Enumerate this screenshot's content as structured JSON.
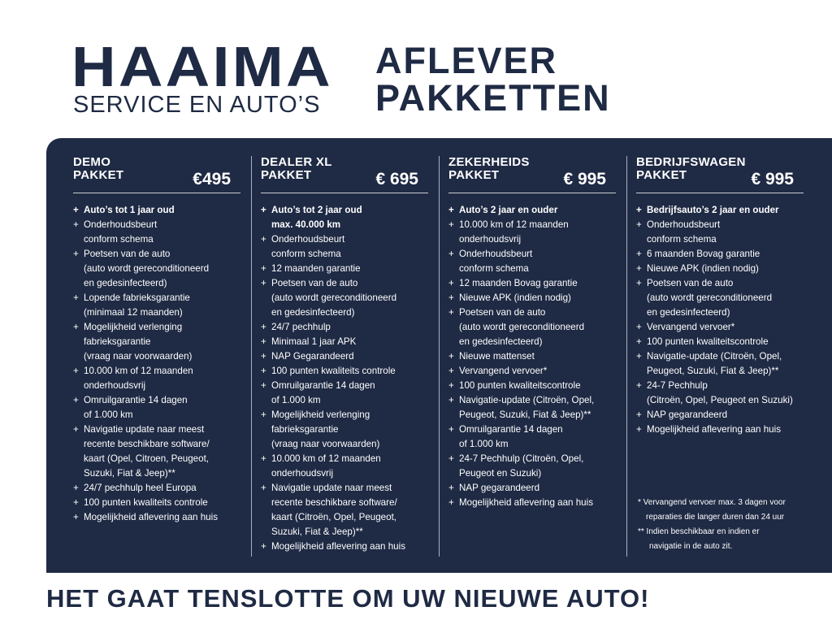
{
  "header": {
    "brand": "HAAIMA",
    "brand_sub": "SERVICE EN AUTO’S",
    "title_lines": [
      "AFLEVER",
      "PAKKETTEN"
    ]
  },
  "packages": [
    {
      "name_lines": [
        "DEMO",
        "PAKKET"
      ],
      "price": "€495",
      "items": [
        [
          "Auto’s tot 1 jaar oud"
        ],
        [
          "Onderhoudsbeurt",
          "conform schema"
        ],
        [
          "Poetsen van de auto",
          "(auto wordt gereconditioneerd",
          "en gedesinfecteerd)"
        ],
        [
          "Lopende fabrieksgarantie",
          "(minimaal 12 maanden)"
        ],
        [
          "Mogelijkheid verlenging",
          "fabrieksgarantie",
          "(vraag naar voorwaarden)"
        ],
        [
          "10.000 km of 12 maanden",
          "onderhoudsvrij"
        ],
        [
          "Omruilgarantie 14 dagen",
          "of 1.000 km"
        ],
        [
          "Navigatie update naar meest",
          "recente beschikbare software/",
          "kaart (Opel, Citroen,  Peugeot,",
          "Suzuki, Fiat & Jeep)**"
        ],
        [
          "24/7 pechhulp heel Europa"
        ],
        [
          "100 punten kwaliteits controle"
        ],
        [
          "Mogelijkheid aflevering aan huis"
        ]
      ]
    },
    {
      "name_lines": [
        "DEALER XL",
        "PAKKET"
      ],
      "price": "€ 695",
      "items": [
        [
          "Auto’s tot 2 jaar oud",
          "max. 40.000 km"
        ],
        [
          "Onderhoudsbeurt",
          "conform schema"
        ],
        [
          "12 maanden garantie"
        ],
        [
          "Poetsen van de auto",
          "(auto wordt gereconditioneerd",
          "en gedesinfecteerd)"
        ],
        [
          "24/7 pechhulp"
        ],
        [
          "Minimaal 1 jaar APK"
        ],
        [
          "NAP Gegarandeerd"
        ],
        [
          "100 punten kwaliteits controle"
        ],
        [
          "Omruilgarantie 14 dagen",
          "of 1.000 km"
        ],
        [
          "Mogelijkheid verlenging",
          "fabrieksgarantie",
          "(vraag naar voorwaarden)"
        ],
        [
          "10.000 km of 12 maanden",
          "onderhoudsvrij"
        ],
        [
          "Navigatie update naar meest",
          "recente beschikbare software/",
          "kaart (Citroën, Opel, Peugeot,",
          "Suzuki, Fiat & Jeep)**"
        ],
        [
          "Mogelijkheid aflevering aan huis"
        ]
      ]
    },
    {
      "name_lines": [
        "ZEKERHEIDS",
        "PAKKET"
      ],
      "price": "€ 995",
      "items": [
        [
          "Auto’s 2 jaar en ouder"
        ],
        [
          "10.000 km of 12 maanden",
          "onderhoudsvrij"
        ],
        [
          "Onderhoudsbeurt",
          "conform schema"
        ],
        [
          "12 maanden Bovag garantie"
        ],
        [
          "Nieuwe APK (indien nodig)"
        ],
        [
          "Poetsen van de auto",
          "(auto wordt gereconditioneerd",
          "en gedesinfecteerd)"
        ],
        [
          "Nieuwe mattenset"
        ],
        [
          "Vervangend vervoer*"
        ],
        [
          "100 punten kwaliteitscontrole"
        ],
        [
          "Navigatie-update (Citroën, Opel,",
          "Peugeot, Suzuki, Fiat & Jeep)**"
        ],
        [
          "Omruilgarantie 14 dagen",
          "of 1.000 km"
        ],
        [
          "24-7 Pechhulp (Citroën, Opel,",
          "Peugeot en Suzuki)"
        ],
        [
          "NAP gegarandeerd"
        ],
        [
          "Mogelijkheid aflevering aan huis"
        ]
      ]
    },
    {
      "name_lines": [
        "BEDRIJFSWAGEN",
        "PAKKET"
      ],
      "price": "€ 995",
      "items": [
        [
          "Bedrijfsauto’s 2 jaar en ouder"
        ],
        [
          "Onderhoudsbeurt",
          "conform schema"
        ],
        [
          "6 maanden Bovag garantie"
        ],
        [
          "Nieuwe APK (indien nodig)"
        ],
        [
          "Poetsen van de auto",
          "(auto wordt gereconditioneerd",
          "en gedesinfecteerd)"
        ],
        [
          "Vervangend vervoer*"
        ],
        [
          "100 punten kwaliteitscontrole"
        ],
        [
          "Navigatie-update (Citroën, Opel,",
          "Peugeot, Suzuki, Fiat & Jeep)**"
        ],
        [
          "24-7 Pechhulp",
          "(Citroën, Opel, Peugeot en Suzuki)"
        ],
        [
          "NAP gegarandeerd"
        ],
        [
          "Mogelijkheid aflevering aan huis"
        ]
      ]
    }
  ],
  "bullet": "+",
  "footnotes": [
    {
      "lines": [
        "* Vervangend vervoer max. 3 dagen voor",
        "reparaties die langer duren dan 24 uur"
      ]
    },
    {
      "lines": [
        "** Indien beschikbaar en indien er",
        "navigatie in de auto zit."
      ]
    }
  ],
  "slogan": "HET GAAT TENSLOTTE OM UW NIEUWE AUTO!",
  "colors": {
    "navy": "#1f2a44",
    "text_on_navy": "#ffffff"
  }
}
